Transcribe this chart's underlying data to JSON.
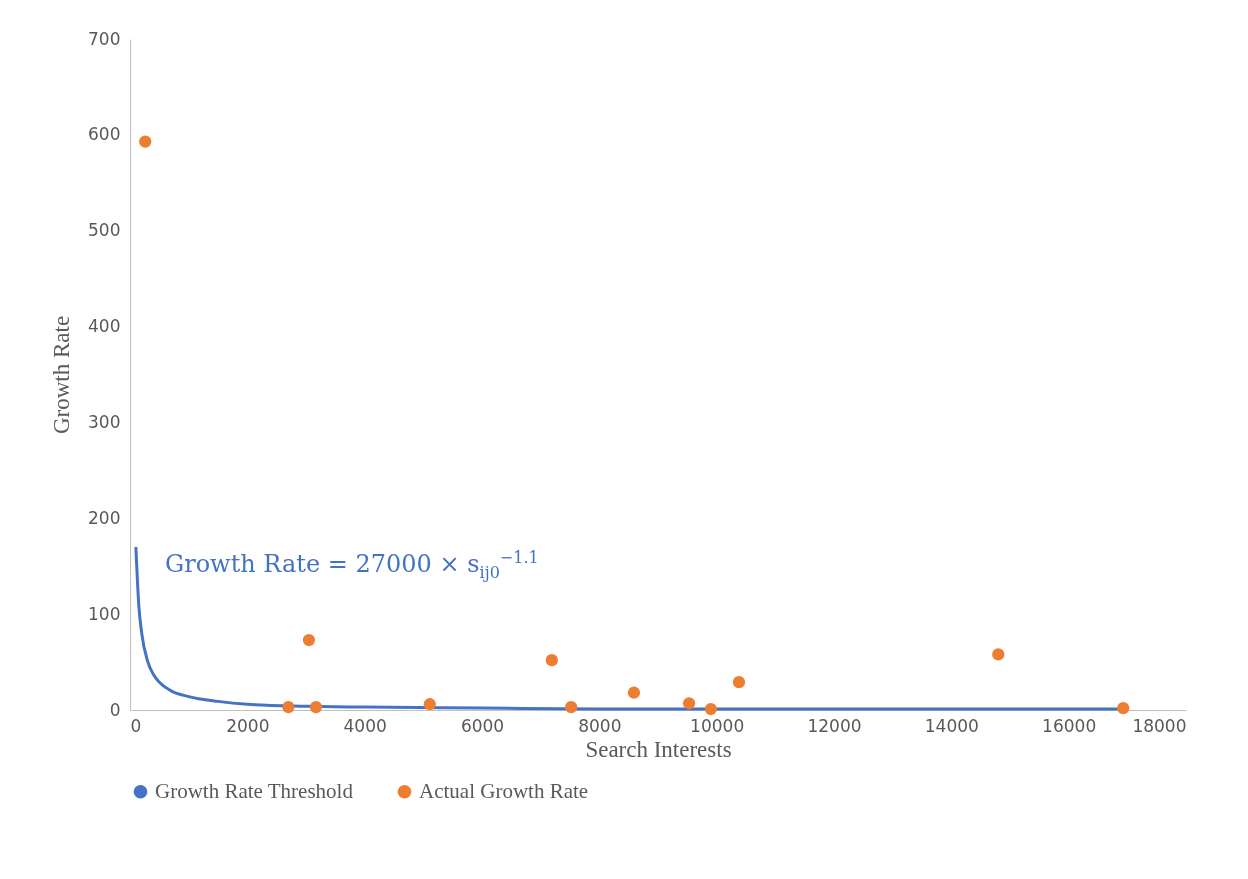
{
  "chart_data": {
    "type": "scatter",
    "xlabel": "Search Interests",
    "ylabel": "Growth Rate",
    "xlim": [
      0,
      18000
    ],
    "ylim": [
      0,
      700
    ],
    "xticks": [
      0,
      2000,
      4000,
      6000,
      8000,
      10000,
      12000,
      14000,
      16000,
      18000
    ],
    "yticks": [
      0,
      100,
      200,
      300,
      400,
      500,
      600,
      700
    ],
    "grid": false,
    "legend": "bottom",
    "series": [
      {
        "name": "Growth Rate Threshold",
        "type": "line",
        "marker": "none",
        "line_style": "solid",
        "color": "#4472c4",
        "x": [
          100,
          150,
          200,
          300,
          400,
          500,
          700,
          1000,
          1500,
          2000,
          3000,
          4000,
          6000,
          8000,
          10000,
          13000,
          17000
        ],
        "values": [
          170,
          109,
          80,
          51,
          37,
          29,
          20,
          14,
          9,
          6,
          4,
          3,
          2,
          1,
          1,
          1,
          1
        ]
      },
      {
        "name": "Actual Growth Rate",
        "marker": "circle",
        "color": "#ed7d31",
        "x": [
          260,
          2700,
          3050,
          3170,
          5110,
          7190,
          7520,
          8590,
          9530,
          9900,
          10380,
          14800,
          16930
        ],
        "values": [
          593,
          3,
          73,
          3,
          6,
          52,
          3,
          18,
          7,
          1,
          29,
          58,
          2
        ]
      }
    ],
    "annotations": [
      "Growth Rate = 27000 × s$_{ij0}$$^{−1.1}$"
    ]
  }
}
